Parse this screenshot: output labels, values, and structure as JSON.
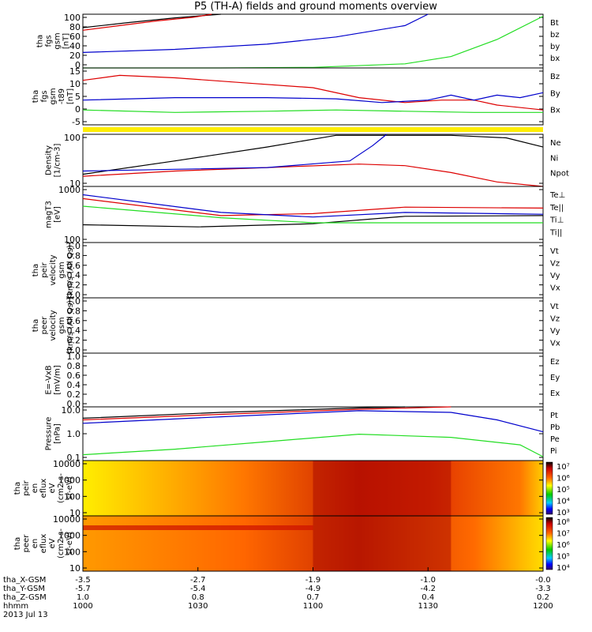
{
  "title": "P5 (TH-A) fields and ground moments overview",
  "date_label": "2013 Jul 13",
  "colors": {
    "black": "#000000",
    "red": "#dd0000",
    "green": "#22dd22",
    "blue": "#0000cc",
    "yellow": "#ffee00"
  },
  "chart_data": [
    {
      "type": "line",
      "panel": "fgs",
      "ylabel": [
        "tha",
        "fgs",
        "gsm",
        "[nT]"
      ],
      "ticks": [
        "100",
        "80",
        "60",
        "40",
        "20",
        "0"
      ],
      "series": [
        {
          "name": "Bt",
          "color": "black",
          "points": [
            [
              0,
              78
            ],
            [
              0.1,
              88
            ],
            [
              0.2,
              97
            ],
            [
              0.3,
              104
            ]
          ]
        },
        {
          "name": "bz",
          "color": "red",
          "points": [
            [
              0,
              73
            ],
            [
              0.08,
              82
            ],
            [
              0.16,
              91
            ],
            [
              0.24,
              98
            ],
            [
              0.28,
              104
            ]
          ]
        },
        {
          "name": "by",
          "color": "green",
          "points": [
            [
              0,
              0
            ],
            [
              0.3,
              0
            ],
            [
              0.5,
              1
            ],
            [
              0.7,
              8
            ],
            [
              0.8,
              22
            ],
            [
              0.9,
              55
            ],
            [
              1,
              100
            ]
          ]
        },
        {
          "name": "bx",
          "color": "blue",
          "points": [
            [
              0,
              30
            ],
            [
              0.2,
              36
            ],
            [
              0.4,
              46
            ],
            [
              0.55,
              60
            ],
            [
              0.7,
              82
            ],
            [
              0.75,
              104
            ]
          ]
        }
      ]
    },
    {
      "type": "line",
      "panel": "fgs_t89",
      "ylabel": [
        "tha",
        "fgs",
        "gsm",
        "-t89",
        "[nT]"
      ],
      "ticks": [
        "15",
        "10",
        "5",
        "0",
        "-5"
      ],
      "series": [
        {
          "name": "Bz",
          "color": "red",
          "points": [
            [
              0,
              11
            ],
            [
              0.08,
              13
            ],
            [
              0.2,
              12
            ],
            [
              0.35,
              10
            ],
            [
              0.5,
              8
            ],
            [
              0.6,
              4
            ],
            [
              0.7,
              2
            ],
            [
              0.78,
              3
            ],
            [
              0.85,
              3
            ],
            [
              0.9,
              1
            ],
            [
              1,
              -1
            ]
          ]
        },
        {
          "name": "By",
          "color": "green",
          "points": [
            [
              0,
              -1
            ],
            [
              0.2,
              -2
            ],
            [
              0.4,
              -1.5
            ],
            [
              0.55,
              -1
            ],
            [
              0.7,
              -1.5
            ],
            [
              0.85,
              -2
            ],
            [
              1,
              -2
            ]
          ]
        },
        {
          "name": "Bx",
          "color": "blue",
          "points": [
            [
              0,
              3
            ],
            [
              0.2,
              4
            ],
            [
              0.4,
              4
            ],
            [
              0.55,
              3.5
            ],
            [
              0.65,
              2
            ],
            [
              0.75,
              3
            ],
            [
              0.8,
              5
            ],
            [
              0.85,
              3
            ],
            [
              0.9,
              5
            ],
            [
              0.95,
              4
            ],
            [
              1,
              6
            ]
          ]
        }
      ]
    },
    {
      "type": "line",
      "panel": "density",
      "ylabel": [
        "Density",
        "[1/cm-3]"
      ],
      "ticks": [
        "100",
        "10"
      ],
      "series": [
        {
          "name": "Ne",
          "color": "red",
          "points": [
            [
              0,
              5
            ],
            [
              0.2,
              8
            ],
            [
              0.4,
              11
            ],
            [
              0.6,
              15
            ],
            [
              0.7,
              13
            ],
            [
              0.8,
              7
            ],
            [
              0.9,
              3
            ],
            [
              1,
              2
            ]
          ]
        },
        {
          "name": "Ni",
          "color": "black",
          "points": [
            [
              0,
              6
            ],
            [
              0.2,
              20
            ],
            [
              0.4,
              70
            ],
            [
              0.55,
              200
            ],
            [
              0.8,
              200
            ],
            [
              0.92,
              160
            ],
            [
              1,
              70
            ]
          ]
        },
        {
          "name": "Npot",
          "color": "blue",
          "points": [
            [
              0,
              8
            ],
            [
              0.4,
              11
            ],
            [
              0.58,
              20
            ],
            [
              0.63,
              80
            ],
            [
              0.66,
              220
            ]
          ]
        }
      ]
    },
    {
      "type": "line",
      "panel": "temperature",
      "ylabel": [
        "magT3",
        "[eV]"
      ],
      "ticks": [
        "1000",
        "100"
      ],
      "series": [
        {
          "name": "Te⊥",
          "color": "red",
          "points": [
            [
              0,
              700
            ],
            [
              0.3,
              330
            ],
            [
              0.5,
              360
            ],
            [
              0.7,
              480
            ],
            [
              1,
              460
            ]
          ]
        },
        {
          "name": "Te||",
          "color": "black",
          "points": [
            [
              0,
              220
            ],
            [
              0.25,
              200
            ],
            [
              0.5,
              230
            ],
            [
              0.7,
              320
            ],
            [
              1,
              330
            ]
          ]
        },
        {
          "name": "Ti⊥",
          "color": "blue",
          "points": [
            [
              0,
              830
            ],
            [
              0.3,
              380
            ],
            [
              0.5,
              310
            ],
            [
              0.7,
              380
            ],
            [
              1,
              350
            ]
          ]
        },
        {
          "name": "Ti||",
          "color": "green",
          "points": [
            [
              0,
              500
            ],
            [
              0.3,
              300
            ],
            [
              0.5,
              240
            ],
            [
              0.7,
              240
            ],
            [
              1,
              240
            ]
          ]
        }
      ]
    },
    {
      "type": "line",
      "panel": "peir_velocity",
      "ylabel": [
        "tha",
        "peir",
        "velocity",
        "gsm",
        "[km/s (All Qs)]"
      ],
      "ticks": [
        "1.0",
        "0.8",
        "0.6",
        "0.4",
        "0.2",
        "0.0"
      ],
      "legend": [
        "Vt",
        "Vz",
        "Vy",
        "Vx"
      ]
    },
    {
      "type": "line",
      "panel": "peer_velocity",
      "ylabel": [
        "tha",
        "peer",
        "velocity",
        "gsm",
        "[km/s (All Qs)]"
      ],
      "ticks": [
        "1.0",
        "0.8",
        "0.6",
        "0.4",
        "0.2",
        "0.0"
      ],
      "legend": [
        "Vt",
        "Vz",
        "Vy",
        "Vx"
      ]
    },
    {
      "type": "line",
      "panel": "efield",
      "ylabel": [
        "E=-VxB",
        "[mV/m]"
      ],
      "ticks": [
        "1.0",
        "0.8",
        "0.6",
        "0.4",
        "0.2",
        "0.0"
      ],
      "legend": [
        "Ez",
        "Ey",
        "Ex"
      ]
    },
    {
      "type": "line",
      "panel": "pressure",
      "ylabel": [
        "Pressure",
        "[nPa]"
      ],
      "ticks": [
        "10.0",
        "1.0",
        "0.1"
      ],
      "series": [
        {
          "name": "Pt",
          "color": "black",
          "points": [
            [
              0,
              3.5
            ],
            [
              0.3,
              6
            ],
            [
              0.6,
              9
            ],
            [
              0.7,
              10
            ]
          ]
        },
        {
          "name": "Pb",
          "color": "red",
          "points": [
            [
              0,
              3
            ],
            [
              0.3,
              5
            ],
            [
              0.6,
              8
            ],
            [
              0.8,
              10
            ]
          ]
        },
        {
          "name": "Pe",
          "color": "green",
          "points": [
            [
              0,
              0.12
            ],
            [
              0.2,
              0.2
            ],
            [
              0.4,
              0.4
            ],
            [
              0.6,
              0.8
            ],
            [
              0.8,
              0.6
            ],
            [
              0.95,
              0.3
            ],
            [
              1,
              0.1
            ]
          ]
        },
        {
          "name": "Pi",
          "color": "blue",
          "points": [
            [
              0,
              2.2
            ],
            [
              0.3,
              4
            ],
            [
              0.6,
              7
            ],
            [
              0.8,
              6
            ],
            [
              0.9,
              3
            ],
            [
              1,
              1
            ]
          ]
        }
      ]
    },
    {
      "type": "heatmap",
      "panel": "peir_spec",
      "ylabel": [
        "tha",
        "peir",
        "en",
        "eflux",
        "eV",
        "(cm2-s-",
        "sr-eV)"
      ],
      "ticks": [
        "10000",
        "1000",
        "100",
        "10"
      ],
      "colorbar": [
        "10⁷",
        "10⁶",
        "10⁵",
        "10⁴",
        "10³"
      ]
    },
    {
      "type": "heatmap",
      "panel": "peer_spec",
      "ylabel": [
        "tha",
        "peer",
        "en",
        "eflux",
        "eV",
        "(cm2-s-",
        "sr-eV)"
      ],
      "ticks": [
        "10000",
        "1000",
        "100",
        "10"
      ],
      "colorbar": [
        "10⁸",
        "10⁷",
        "10⁶",
        "10⁵",
        "10⁴"
      ]
    }
  ],
  "legends": {
    "fgs": [
      "Bt",
      "bz",
      "by",
      "bx"
    ],
    "fgs_t89": [
      "Bz",
      "By",
      "Bx"
    ],
    "density": [
      "Ne",
      "Ni",
      "Npot"
    ],
    "temperature": [
      "Te⊥",
      "Te||",
      "Ti⊥",
      "Ti||"
    ],
    "pressure": [
      "Pt",
      "Pb",
      "Pe",
      "Pi"
    ]
  },
  "x_axis": {
    "rows": [
      {
        "label": "tha_X-GSM",
        "values": [
          "-3.5",
          "-2.7",
          "-1.9",
          "-1.0",
          "-0.0"
        ]
      },
      {
        "label": "tha_Y-GSM",
        "values": [
          "-5.7",
          "-5.4",
          "-4.9",
          "-4.2",
          "-3.3"
        ]
      },
      {
        "label": "tha_Z-GSM",
        "values": [
          "1.0",
          "0.8",
          "0.7",
          "0.4",
          "0.2"
        ]
      },
      {
        "label": "hhmm",
        "values": [
          "1000",
          "1030",
          "1100",
          "1130",
          "1200"
        ]
      }
    ]
  }
}
